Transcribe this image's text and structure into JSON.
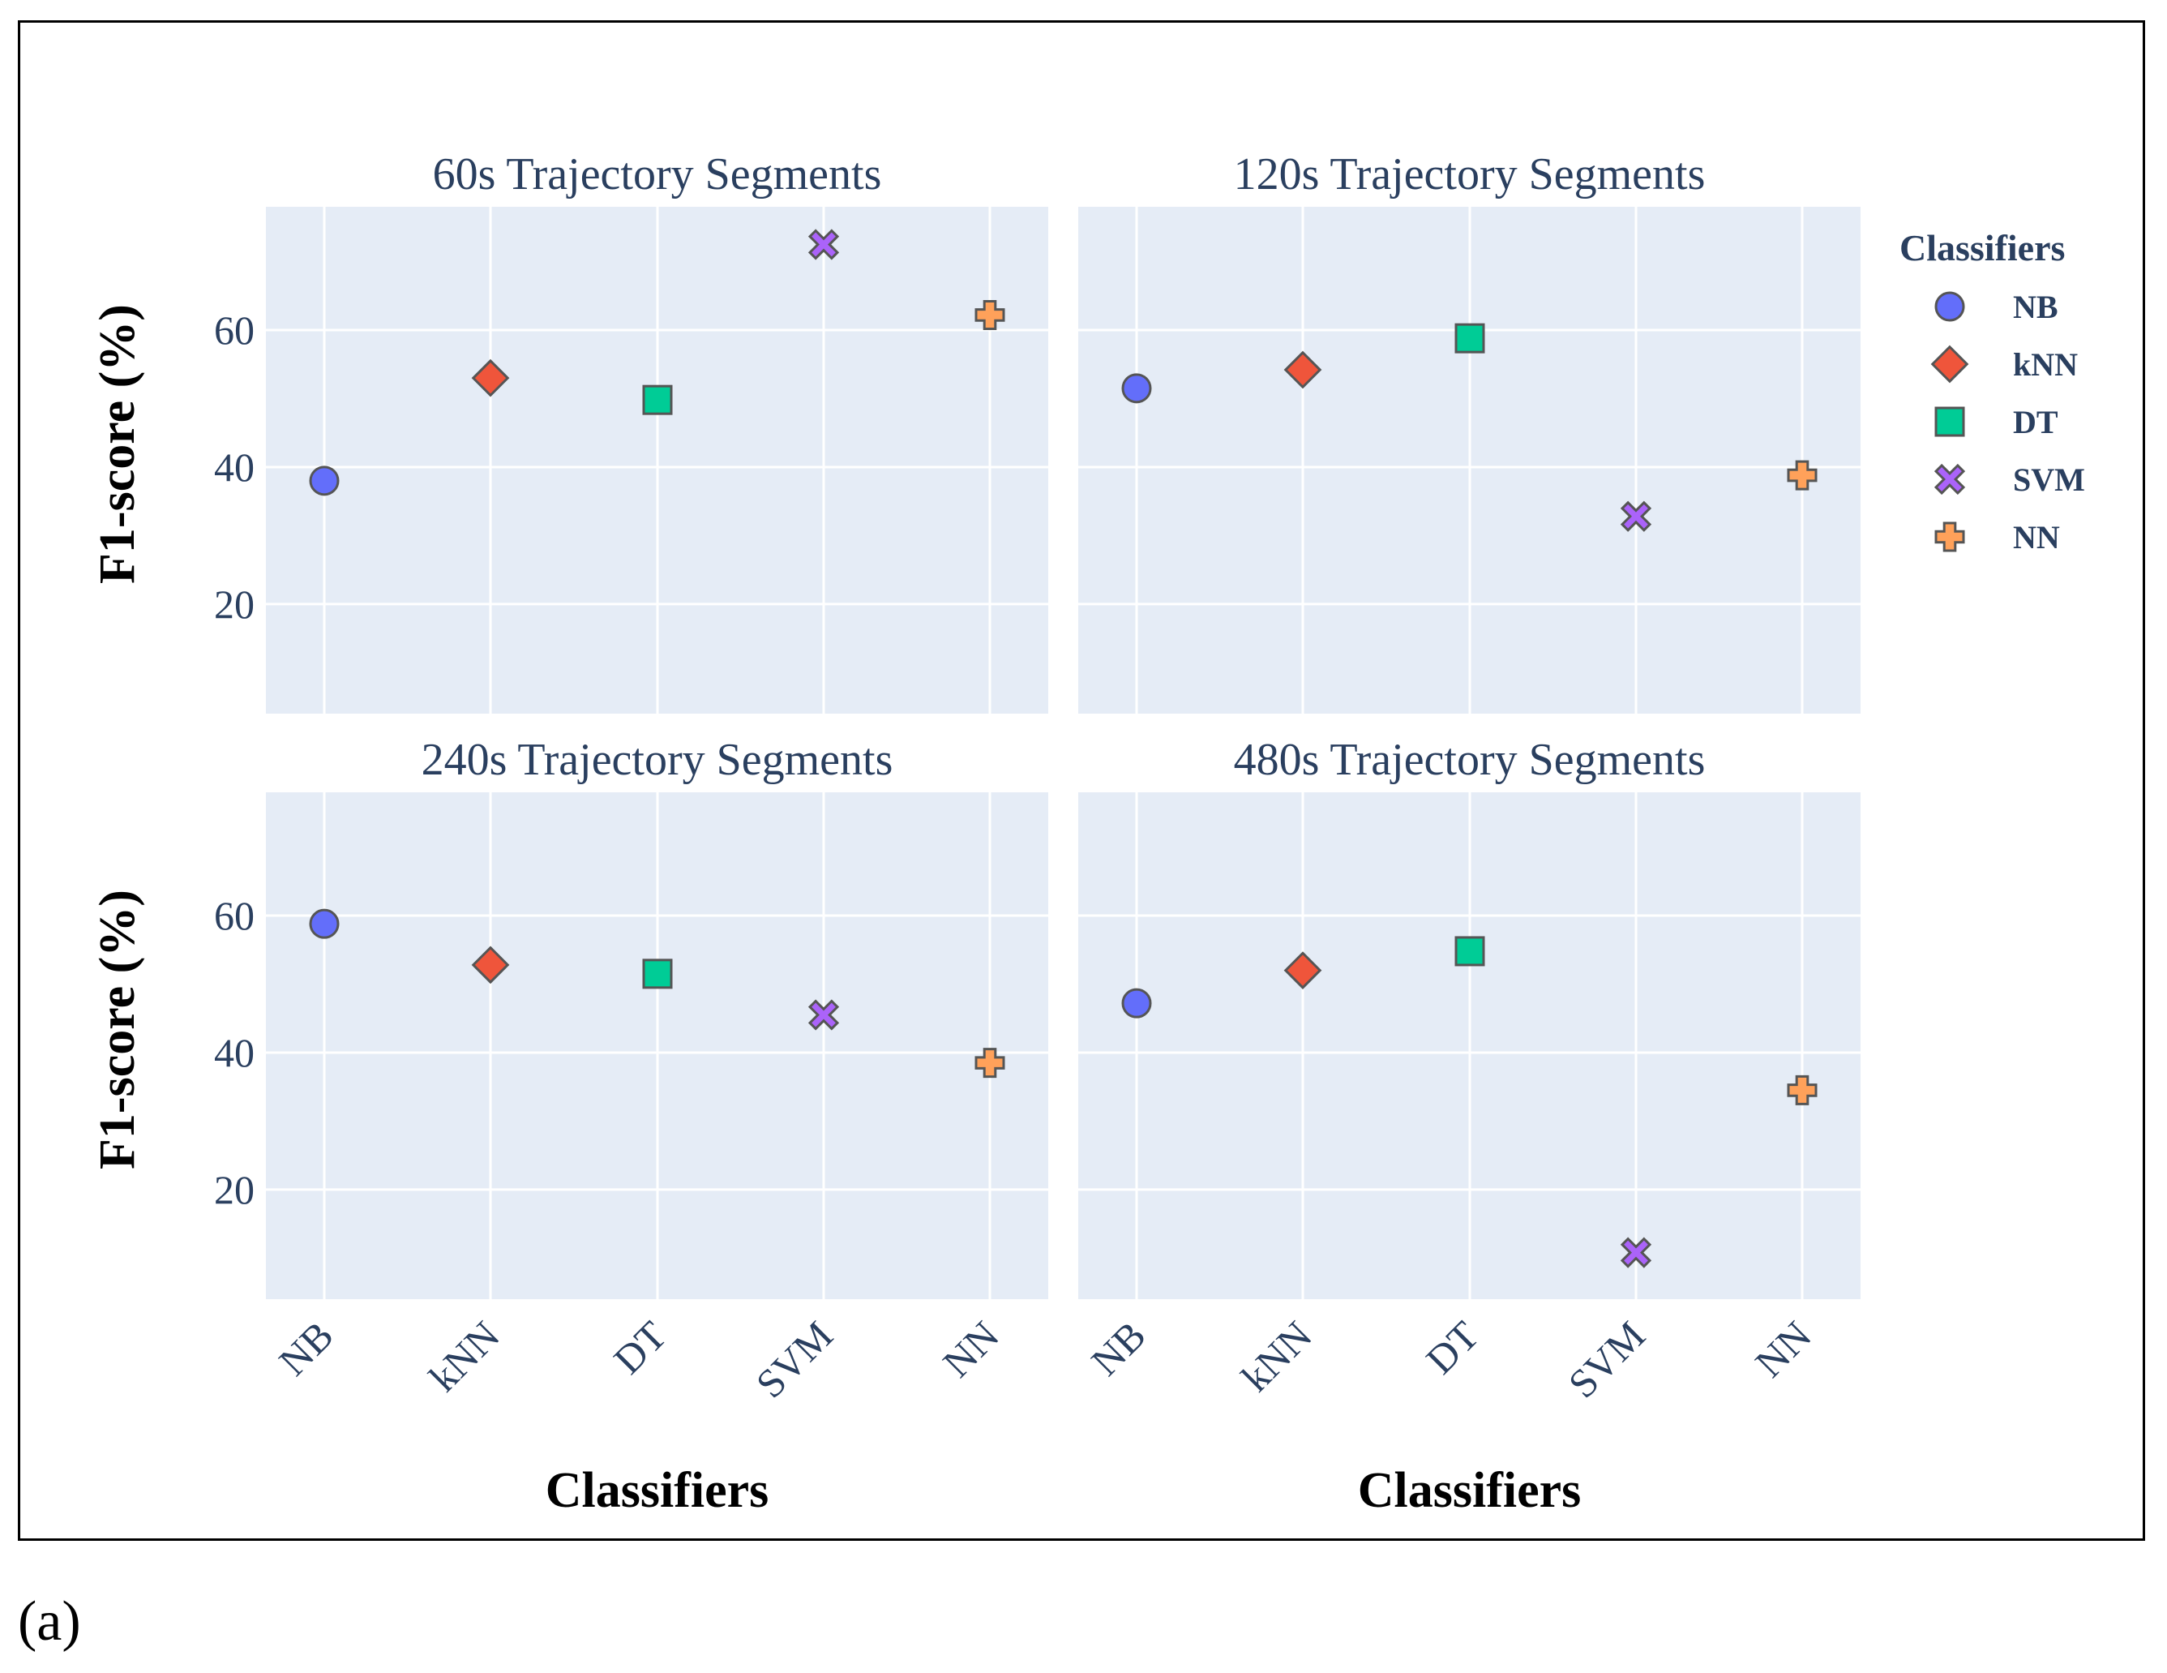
{
  "caption": "(a)",
  "colors": {
    "plot_bg": "#e5ecf6",
    "grid": "#ffffff",
    "NB": "#636efa",
    "kNN": "#ef553b",
    "DT": "#00cc96",
    "SVM": "#ab63fa",
    "NN": "#ffa15a",
    "marker_edge": "#555555"
  },
  "chart_data": {
    "type": "scatter",
    "shared_yaxis": {
      "title": "F1-score (%)",
      "range": [
        4,
        78
      ],
      "ticks": [
        20,
        40,
        60
      ]
    },
    "shared_xaxis": {
      "title": "Classifiers",
      "categories": [
        "NB",
        "kNN",
        "DT",
        "SVM",
        "NN"
      ]
    },
    "legend": {
      "title": "Classifiers",
      "position": "right",
      "items": [
        {
          "name": "NB",
          "symbol": "circle"
        },
        {
          "name": "kNN",
          "symbol": "diamond"
        },
        {
          "name": "DT",
          "symbol": "square"
        },
        {
          "name": "SVM",
          "symbol": "x"
        },
        {
          "name": "NN",
          "symbol": "cross"
        }
      ]
    },
    "panels": [
      {
        "title": "60s Trajectory Segments",
        "values": {
          "NB": 38,
          "kNN": 53,
          "DT": 49.8,
          "SVM": 72.5,
          "NN": 62.2
        }
      },
      {
        "title": "120s Trajectory Segments",
        "values": {
          "NB": 51.5,
          "kNN": 54.2,
          "DT": 58.8,
          "SVM": 32.8,
          "NN": 38.8
        }
      },
      {
        "title": "240s Trajectory Segments",
        "values": {
          "NB": 58.8,
          "kNN": 52.8,
          "DT": 51.5,
          "SVM": 45.5,
          "NN": 38.5
        }
      },
      {
        "title": "480s Trajectory Segments",
        "values": {
          "NB": 47.2,
          "kNN": 52,
          "DT": 54.8,
          "SVM": 10.8,
          "NN": 34.5
        }
      }
    ]
  }
}
